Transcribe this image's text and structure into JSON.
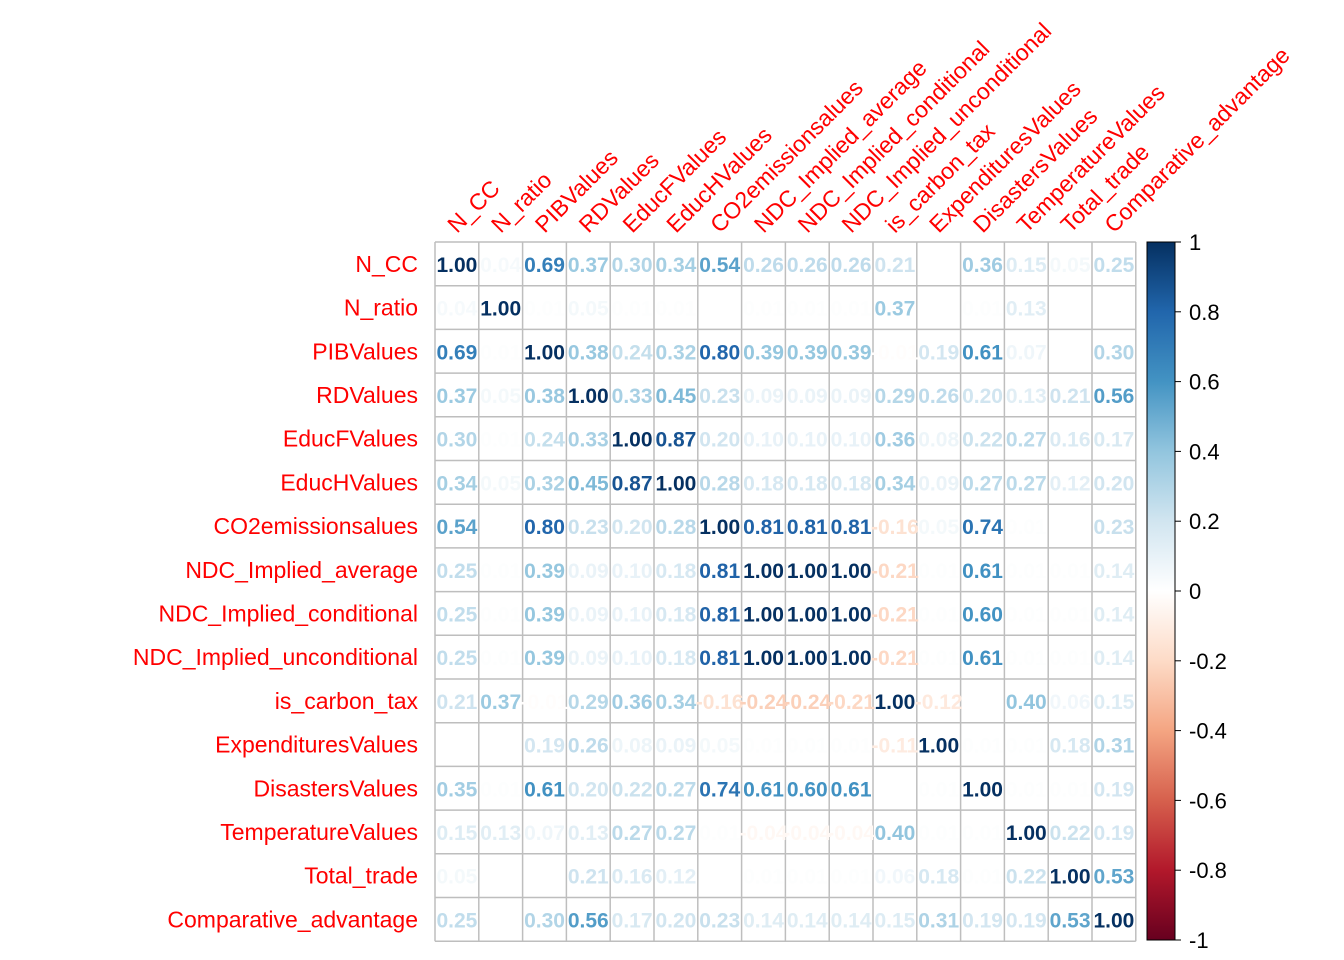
{
  "chart_data": {
    "type": "heatmap",
    "variables": [
      "N_CC",
      "N_ratio",
      "PIBValues",
      "RDValues",
      "EducFValues",
      "EducHValues",
      "CO2emissionsalues",
      "NDC_Implied_average",
      "NDC_Implied_conditional",
      "NDC_Implied_unconditional",
      "is_carbon_tax",
      "ExpendituresValues",
      "DisastersValues",
      "TemperatureValues",
      "Total_trade",
      "Comparative_advantage"
    ],
    "matrix": [
      [
        1.0,
        0.04,
        0.69,
        0.37,
        0.3,
        0.34,
        0.54,
        0.26,
        0.26,
        0.26,
        0.21,
        0.0,
        0.36,
        0.15,
        0.05,
        0.25
      ],
      [
        0.04,
        1.0,
        0.01,
        0.05,
        0.01,
        0.01,
        0.0,
        0.01,
        0.01,
        0.01,
        0.37,
        0.0,
        0.01,
        0.13,
        0.0,
        0.0
      ],
      [
        0.69,
        0.01,
        1.0,
        0.38,
        0.24,
        0.32,
        0.8,
        0.39,
        0.39,
        0.39,
        -0.01,
        0.19,
        0.61,
        0.07,
        0.0,
        0.3
      ],
      [
        0.37,
        0.05,
        0.38,
        1.0,
        0.33,
        0.45,
        0.23,
        0.09,
        0.09,
        0.09,
        0.29,
        0.26,
        0.2,
        0.13,
        0.21,
        0.56
      ],
      [
        0.3,
        0.01,
        0.24,
        0.33,
        1.0,
        0.87,
        0.2,
        0.1,
        0.1,
        0.1,
        0.36,
        0.08,
        0.22,
        0.27,
        0.16,
        0.17
      ],
      [
        0.34,
        0.05,
        0.32,
        0.45,
        0.87,
        1.0,
        0.28,
        0.18,
        0.18,
        0.18,
        0.34,
        0.09,
        0.27,
        0.27,
        0.12,
        0.2
      ],
      [
        0.54,
        0.0,
        0.8,
        0.23,
        0.2,
        0.28,
        1.0,
        0.81,
        0.81,
        0.81,
        -0.16,
        0.05,
        0.74,
        0.01,
        0.0,
        0.23
      ],
      [
        0.25,
        0.01,
        0.39,
        0.09,
        0.1,
        0.18,
        0.81,
        1.0,
        1.0,
        1.0,
        -0.21,
        0.01,
        0.61,
        0.01,
        0.01,
        0.14
      ],
      [
        0.25,
        0.01,
        0.39,
        0.09,
        0.1,
        0.18,
        0.81,
        1.0,
        1.0,
        1.0,
        -0.21,
        0.01,
        0.6,
        0.01,
        0.01,
        0.14
      ],
      [
        0.25,
        0.01,
        0.39,
        0.09,
        0.1,
        0.18,
        0.81,
        1.0,
        1.0,
        1.0,
        -0.21,
        0.01,
        0.61,
        0.01,
        0.01,
        0.14
      ],
      [
        0.21,
        0.37,
        -0.01,
        0.29,
        0.36,
        0.34,
        -0.16,
        -0.24,
        -0.24,
        -0.21,
        1.0,
        -0.12,
        0.0,
        0.4,
        0.06,
        0.15
      ],
      [
        0.0,
        0.0,
        0.19,
        0.26,
        0.08,
        0.09,
        0.05,
        0.01,
        0.01,
        0.01,
        -0.11,
        1.0,
        0.01,
        0.01,
        0.18,
        0.31
      ],
      [
        0.35,
        0.01,
        0.61,
        0.2,
        0.22,
        0.27,
        0.74,
        0.61,
        0.6,
        0.61,
        0.0,
        0.01,
        1.0,
        0.01,
        0.01,
        0.19
      ],
      [
        0.15,
        0.13,
        0.07,
        0.13,
        0.27,
        0.27,
        0.01,
        -0.04,
        -0.04,
        -0.04,
        0.4,
        0.01,
        0.01,
        1.0,
        0.22,
        0.19
      ],
      [
        0.05,
        0.0,
        0.0,
        0.21,
        0.16,
        0.12,
        0.0,
        0.01,
        0.01,
        0.01,
        0.06,
        0.18,
        0.01,
        0.22,
        1.0,
        0.53
      ],
      [
        0.25,
        0.0,
        0.3,
        0.56,
        0.17,
        0.2,
        0.23,
        0.14,
        0.14,
        0.14,
        0.15,
        0.31,
        0.19,
        0.19,
        0.53,
        1.0
      ]
    ],
    "colorbar": {
      "ticks": [
        "1",
        "0.8",
        "0.6",
        "0.4",
        "0.2",
        "0",
        "-0.2",
        "-0.4",
        "-0.6",
        "-0.8",
        "-1"
      ],
      "range": [
        -1,
        1
      ],
      "palette": [
        "#67001F",
        "#B2182B",
        "#D6604D",
        "#F4A582",
        "#FDDBC7",
        "#FFFFFF",
        "#D1E5F0",
        "#92C5DE",
        "#4393C3",
        "#2166AC",
        "#053061"
      ]
    },
    "label_color": "#FF0000",
    "grid_color": "#BEBEBE"
  }
}
